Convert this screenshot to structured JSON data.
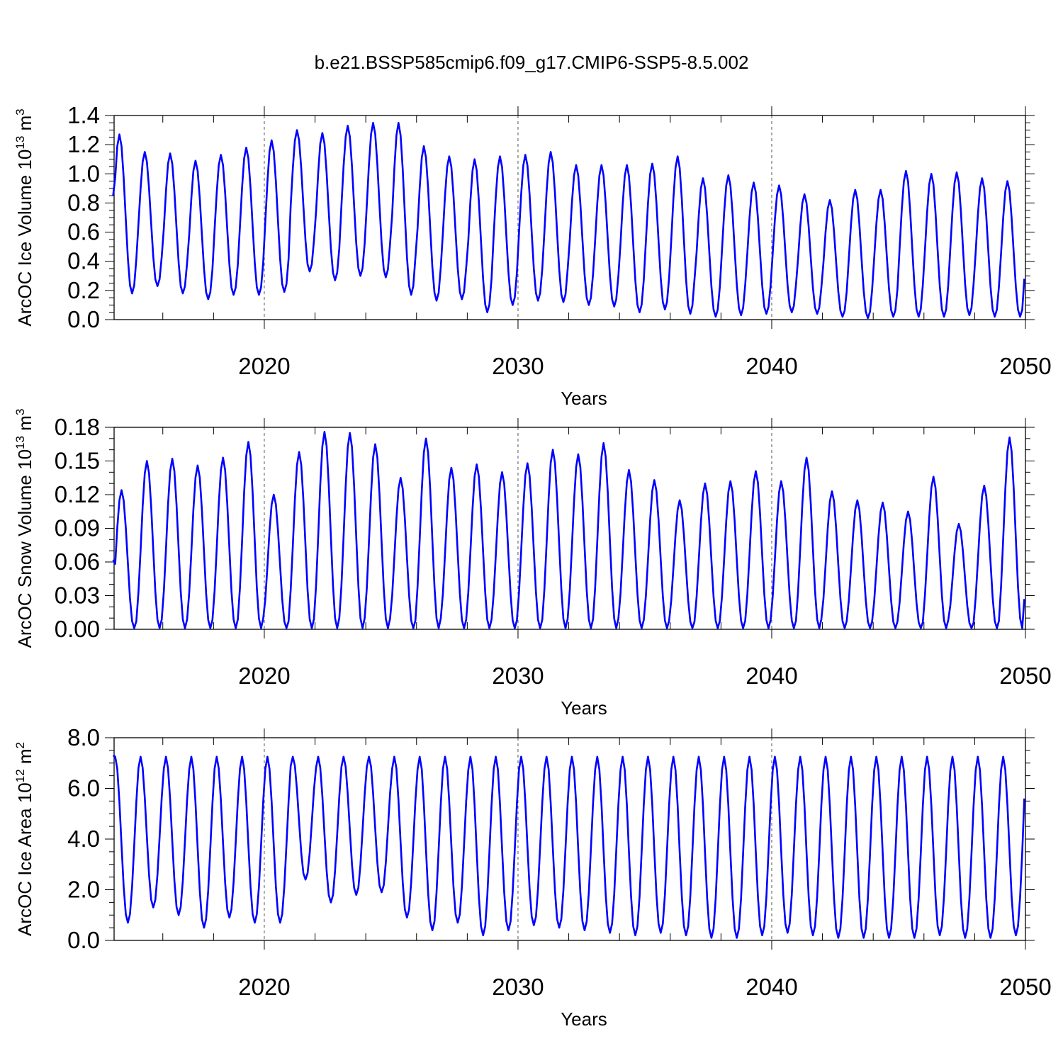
{
  "figure_title": "b.e21.BSSP585cmip6.f09_g17.CMIP6-SSP5-8.5.002",
  "line_color": "#0000ff",
  "chart_data": [
    {
      "type": "line",
      "ylabel_main": "ArcOC Ice Volume 10",
      "ylabel_exp": "13",
      "ylabel_unit": " m",
      "ylabel_unit_exp": "3",
      "xlabel": "Years",
      "xlim": [
        2014.08,
        2050.0
      ],
      "ylim": [
        0.0,
        1.4
      ],
      "yticks": [
        0.0,
        0.2,
        0.4,
        0.6,
        0.8,
        1.0,
        1.2,
        1.4
      ],
      "ytick_labels": [
        "0.0",
        "0.2",
        "0.4",
        "0.6",
        "0.8",
        "1.0",
        "1.2",
        "1.4"
      ],
      "xticks": [
        2020,
        2030,
        2040,
        2050
      ],
      "xtick_labels": [
        "2020",
        "2030",
        "2040",
        "2050"
      ],
      "grid": "dashed vertical at decades",
      "series": [
        {
          "name": "ArcOC Ice Volume",
          "start_year": 2014.04,
          "peak_month": 3,
          "annual_max": [
            1.27,
            1.15,
            1.14,
            1.09,
            1.13,
            1.18,
            1.23,
            1.3,
            1.28,
            1.33,
            1.35,
            1.35,
            1.19,
            1.12,
            1.1,
            1.12,
            1.13,
            1.15,
            1.06,
            1.06,
            1.06,
            1.07,
            1.12,
            0.97,
            0.99,
            0.94,
            0.92,
            0.86,
            0.82,
            0.89,
            0.89,
            1.02,
            1.0,
            1.01,
            0.97,
            0.95
          ],
          "annual_min": [
            0.18,
            0.23,
            0.18,
            0.14,
            0.17,
            0.17,
            0.19,
            0.33,
            0.27,
            0.3,
            0.29,
            0.17,
            0.13,
            0.14,
            0.05,
            0.1,
            0.13,
            0.12,
            0.1,
            0.09,
            0.05,
            0.07,
            0.04,
            0.02,
            0.03,
            0.04,
            0.05,
            0.04,
            0.02,
            0.01,
            0.02,
            0.02,
            0.02,
            0.03,
            0.02,
            0.02,
            0.03
          ],
          "start_value": 0.85,
          "end_value": 0.28
        }
      ]
    },
    {
      "type": "line",
      "ylabel_main": "ArcOC Snow Volume 10",
      "ylabel_exp": "13",
      "ylabel_unit": " m",
      "ylabel_unit_exp": "3",
      "xlabel": "Years",
      "xlim": [
        2014.08,
        2050.0
      ],
      "ylim": [
        0.0,
        0.18
      ],
      "yticks": [
        0.0,
        0.03,
        0.06,
        0.09,
        0.12,
        0.15,
        0.18
      ],
      "ytick_labels": [
        "0.00",
        "0.03",
        "0.06",
        "0.09",
        "0.12",
        "0.15",
        "0.18"
      ],
      "xticks": [
        2020,
        2030,
        2040,
        2050
      ],
      "xtick_labels": [
        "2020",
        "2030",
        "2040",
        "2050"
      ],
      "grid": "dashed vertical at decades",
      "series": [
        {
          "name": "ArcOC Snow Volume",
          "start_year": 2014.04,
          "peak_month": 4,
          "annual_max": [
            0.124,
            0.15,
            0.152,
            0.146,
            0.153,
            0.167,
            0.12,
            0.158,
            0.176,
            0.175,
            0.165,
            0.135,
            0.17,
            0.144,
            0.147,
            0.14,
            0.148,
            0.16,
            0.156,
            0.166,
            0.142,
            0.133,
            0.115,
            0.13,
            0.132,
            0.141,
            0.132,
            0.153,
            0.123,
            0.115,
            0.113,
            0.105,
            0.136,
            0.094,
            0.128,
            0.171
          ],
          "annual_min": [
            0.001,
            0.001,
            0.001,
            0.001,
            0.001,
            0.001,
            0.001,
            0.001,
            0.001,
            0.001,
            0.001,
            0.001,
            0.001,
            0.001,
            0.001,
            0.001,
            0.001,
            0.001,
            0.001,
            0.001,
            0.001,
            0.001,
            0.001,
            0.001,
            0.001,
            0.001,
            0.001,
            0.001,
            0.001,
            0.001,
            0.001,
            0.001,
            0.001,
            0.001,
            0.001,
            0.001,
            0.001
          ],
          "start_value": 0.062,
          "end_value": 0.027
        }
      ]
    },
    {
      "type": "line",
      "ylabel_main": "ArcOC Ice Area 10",
      "ylabel_exp": "12",
      "ylabel_unit": " m",
      "ylabel_unit_exp": "2",
      "xlabel": "Years",
      "xlim": [
        2014.08,
        2050.0
      ],
      "ylim": [
        0.0,
        8.0
      ],
      "yticks": [
        0.0,
        2.0,
        4.0,
        6.0,
        8.0
      ],
      "ytick_labels": [
        "0.0",
        "2.0",
        "4.0",
        "6.0",
        "8.0"
      ],
      "xticks": [
        2020,
        2030,
        2040,
        2050
      ],
      "xtick_labels": [
        "2020",
        "2030",
        "2040",
        "2050"
      ],
      "grid": "dashed vertical at decades",
      "series": [
        {
          "name": "ArcOC Ice Area",
          "start_year": 2014.04,
          "peak_month": 1,
          "annual_max": [
            7.25,
            7.25,
            7.25,
            7.25,
            7.25,
            7.25,
            7.25,
            7.25,
            7.25,
            7.25,
            7.25,
            7.25,
            7.25,
            7.25,
            7.25,
            7.25,
            7.25,
            7.25,
            7.25,
            7.25,
            7.25,
            7.25,
            7.25,
            7.25,
            7.25,
            7.25,
            7.25,
            7.25,
            7.25,
            7.25,
            7.25,
            7.25,
            7.25,
            7.25,
            7.25,
            7.25
          ],
          "annual_min": [
            0.7,
            1.3,
            1.0,
            0.5,
            0.9,
            0.7,
            0.7,
            2.4,
            1.5,
            1.8,
            1.9,
            0.9,
            0.4,
            0.7,
            0.2,
            0.4,
            0.6,
            0.5,
            0.4,
            0.3,
            0.2,
            0.3,
            0.2,
            0.1,
            0.1,
            0.2,
            0.3,
            0.2,
            0.1,
            0.1,
            0.1,
            0.1,
            0.2,
            0.1,
            0.1,
            0.2,
            0.2
          ],
          "start_value": 7.3,
          "end_value": 5.6
        }
      ]
    }
  ]
}
